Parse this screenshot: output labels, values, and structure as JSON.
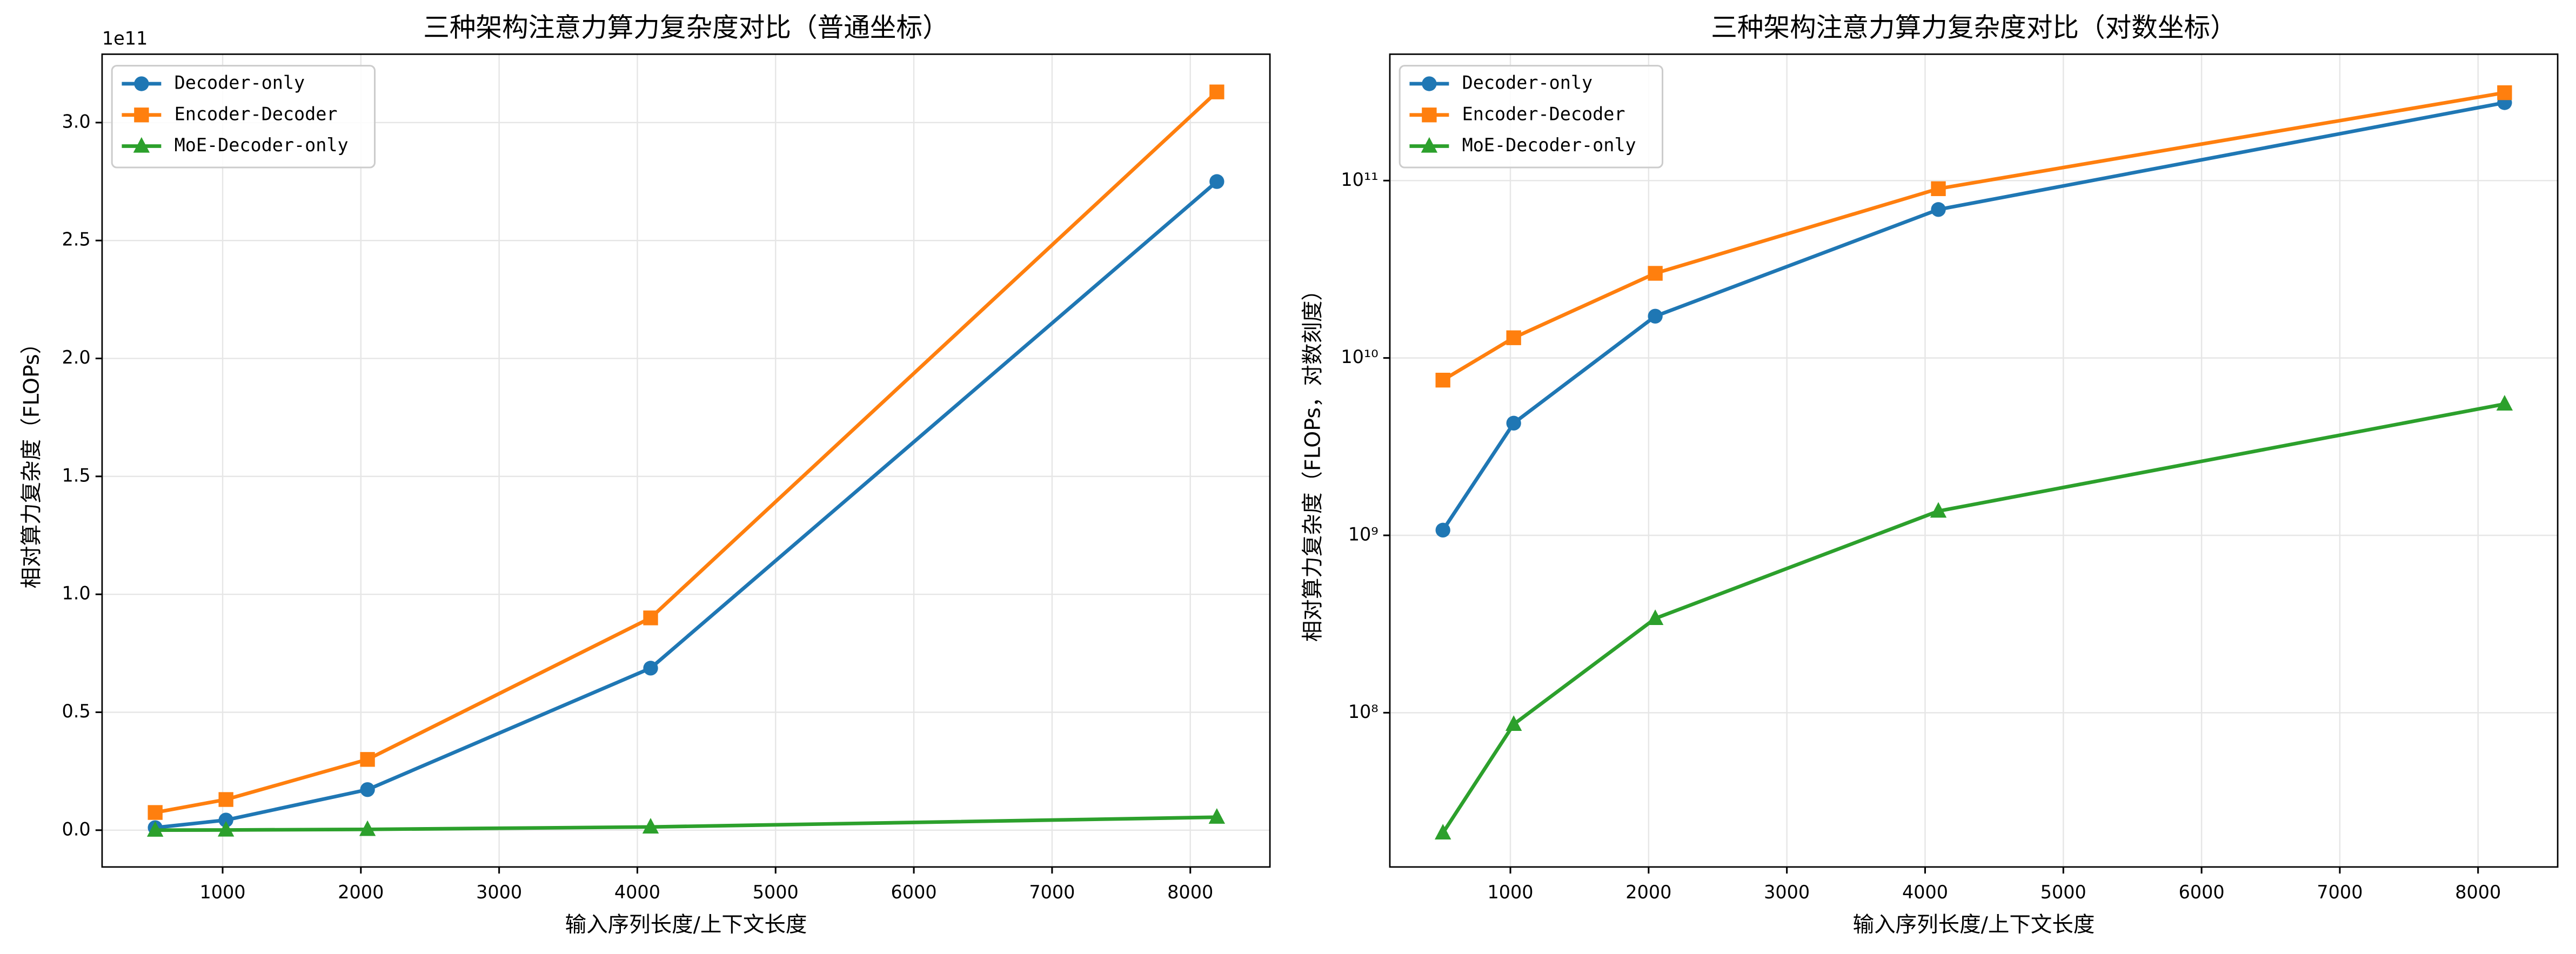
{
  "chart_data": [
    {
      "type": "line",
      "title": "三种架构注意力算力复杂度对比（普通坐标）",
      "xlabel": "输入序列长度/上下文长度",
      "ylabel": "相对算力复杂度（FLOPs）",
      "y_offset_label": "1e11",
      "x": [
        512,
        1024,
        2048,
        4096,
        8192
      ],
      "series": [
        {
          "name": "Decoder-only",
          "color": "#1f77b4",
          "marker": "circle",
          "values": [
            1070000000.0,
            4290000000.0,
            17200000000.0,
            68700000000.0,
            275000000000.0
          ]
        },
        {
          "name": "Encoder-Decoder",
          "color": "#ff7f0e",
          "marker": "square",
          "values": [
            7500000000.0,
            13000000000.0,
            30000000000.0,
            90000000000.0,
            313000000000.0
          ]
        },
        {
          "name": "MoE-Decoder-only",
          "color": "#2ca02c",
          "marker": "triangle",
          "values": [
            21000000.0,
            86000000.0,
            340000000.0,
            1370000000.0,
            5500000000.0
          ]
        }
      ],
      "xlim": [
        128,
        8576
      ],
      "ylim": [
        -15600000000.0,
        329000000000.0
      ],
      "yscale": "linear",
      "xticks": [
        1000,
        2000,
        3000,
        4000,
        5000,
        6000,
        7000,
        8000
      ],
      "yticks": [
        {
          "value": 0,
          "label": "0.0"
        },
        {
          "value": 50000000000.0,
          "label": "0.5"
        },
        {
          "value": 100000000000.0,
          "label": "1.0"
        },
        {
          "value": 150000000000.0,
          "label": "1.5"
        },
        {
          "value": 200000000000.0,
          "label": "2.0"
        },
        {
          "value": 250000000000.0,
          "label": "2.5"
        },
        {
          "value": 300000000000.0,
          "label": "3.0"
        }
      ],
      "grid": true,
      "legend": "upper left"
    },
    {
      "type": "line",
      "title": "三种架构注意力算力复杂度对比（对数坐标）",
      "xlabel": "输入序列长度/上下文长度",
      "ylabel": "相对算力复杂度（FLOPs，对数刻度）",
      "x": [
        512,
        1024,
        2048,
        4096,
        8192
      ],
      "series": [
        {
          "name": "Decoder-only",
          "color": "#1f77b4",
          "marker": "circle",
          "values": [
            1070000000.0,
            4290000000.0,
            17200000000.0,
            68700000000.0,
            275000000000.0
          ]
        },
        {
          "name": "Encoder-Decoder",
          "color": "#ff7f0e",
          "marker": "square",
          "values": [
            7500000000.0,
            13000000000.0,
            30000000000.0,
            90000000000.0,
            313000000000.0
          ]
        },
        {
          "name": "MoE-Decoder-only",
          "color": "#2ca02c",
          "marker": "triangle",
          "values": [
            21000000.0,
            86000000.0,
            340000000.0,
            1370000000.0,
            5500000000.0
          ]
        }
      ],
      "xlim": [
        128,
        8576
      ],
      "ylim": [
        13500000.0,
        516000000000.0
      ],
      "yscale": "log",
      "xticks": [
        1000,
        2000,
        3000,
        4000,
        5000,
        6000,
        7000,
        8000
      ],
      "yticks": [
        {
          "value": 100000000.0,
          "label": "10⁸"
        },
        {
          "value": 1000000000.0,
          "label": "10⁹"
        },
        {
          "value": 10000000000.0,
          "label": "10¹⁰"
        },
        {
          "value": 100000000000.0,
          "label": "10¹¹"
        }
      ],
      "grid": true,
      "legend": "upper left"
    }
  ]
}
